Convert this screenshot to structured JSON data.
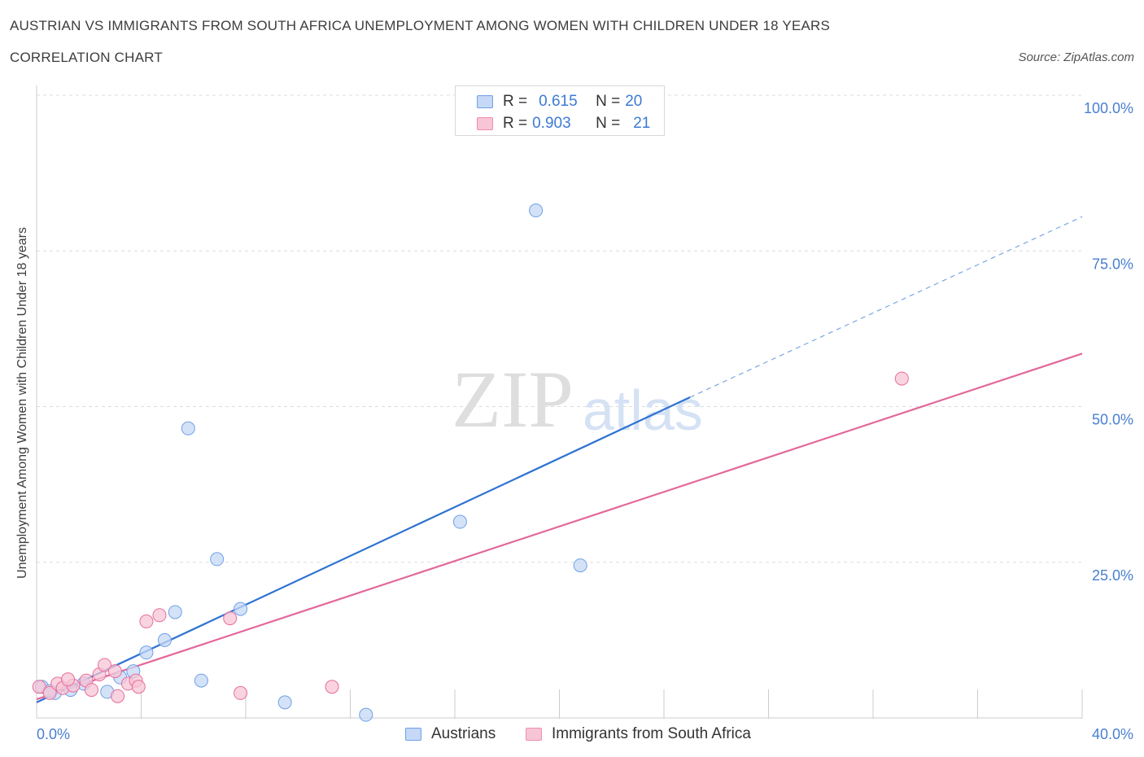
{
  "title": "AUSTRIAN VS IMMIGRANTS FROM SOUTH AFRICA UNEMPLOYMENT AMONG WOMEN WITH CHILDREN UNDER 18 YEARS",
  "subtitle": "CORRELATION CHART",
  "source": "Source: ZipAtlas.com",
  "watermark": {
    "zip": "ZIP",
    "atlas": "atlas"
  },
  "legend": {
    "rows": [
      {
        "r_label": "R =",
        "r_value": "0.615",
        "n_label": "N =",
        "n_value": "20",
        "color": "#6ea0e6"
      },
      {
        "r_label": "R =",
        "r_value": "0.903",
        "n_label": "N =",
        "n_value": "21",
        "color": "#ef8db0"
      }
    ]
  },
  "chart_data": {
    "type": "scatter",
    "title": "AUSTRIAN VS IMMIGRANTS FROM SOUTH AFRICA UNEMPLOYMENT AMONG WOMEN WITH CHILDREN UNDER 18 YEARS",
    "ylabel": "Unemployment Among Women with Children Under 18 years",
    "xlabel": "",
    "xlim": [
      0,
      40
    ],
    "ylim": [
      0,
      100
    ],
    "x_tick_labels": [
      "0.0%",
      "40.0%"
    ],
    "y_tick_labels": [
      "100.0%",
      "75.0%",
      "50.0%",
      "25.0%"
    ],
    "y_tick_values": [
      100,
      75,
      50,
      25
    ],
    "grid": true,
    "series": [
      {
        "name": "Austrians",
        "color": "#6ea0e6",
        "fill": "#c5d8f5",
        "points": [
          [
            0.2,
            5.0
          ],
          [
            0.7,
            4.0
          ],
          [
            1.3,
            4.5
          ],
          [
            1.8,
            5.5
          ],
          [
            2.7,
            4.2
          ],
          [
            3.2,
            6.5
          ],
          [
            3.7,
            7.5
          ],
          [
            4.2,
            10.5
          ],
          [
            4.9,
            12.5
          ],
          [
            5.3,
            17.0
          ],
          [
            5.8,
            46.5
          ],
          [
            6.3,
            6.0
          ],
          [
            6.9,
            25.5
          ],
          [
            7.8,
            17.5
          ],
          [
            9.5,
            2.5
          ],
          [
            12.6,
            0.5
          ],
          [
            16.2,
            31.5
          ],
          [
            19.1,
            81.5
          ],
          [
            20.8,
            24.5
          ],
          [
            0.5,
            4.3
          ]
        ],
        "trend": {
          "x0": 0,
          "y0": 2.5,
          "x1": 25,
          "y1": 51.5,
          "dash_x1": 40,
          "dash_y1": 80.5
        }
      },
      {
        "name": "Immigrants from South Africa",
        "color": "#e86d9a",
        "fill": "#f7c5d6",
        "points": [
          [
            0.1,
            5.0
          ],
          [
            0.5,
            4.0
          ],
          [
            0.8,
            5.5
          ],
          [
            1.0,
            4.8
          ],
          [
            1.4,
            5.2
          ],
          [
            1.9,
            6.0
          ],
          [
            2.1,
            4.5
          ],
          [
            2.4,
            7.0
          ],
          [
            2.6,
            8.5
          ],
          [
            3.0,
            7.5
          ],
          [
            3.1,
            3.5
          ],
          [
            3.5,
            5.5
          ],
          [
            3.8,
            6.0
          ],
          [
            3.9,
            5.0
          ],
          [
            4.2,
            15.5
          ],
          [
            4.7,
            16.5
          ],
          [
            7.4,
            16.0
          ],
          [
            7.8,
            4.0
          ],
          [
            11.3,
            5.0
          ],
          [
            33.1,
            54.5
          ],
          [
            1.2,
            6.2
          ]
        ],
        "trend": {
          "x0": 0,
          "y0": 3.0,
          "x1": 40,
          "y1": 58.5
        }
      }
    ]
  }
}
